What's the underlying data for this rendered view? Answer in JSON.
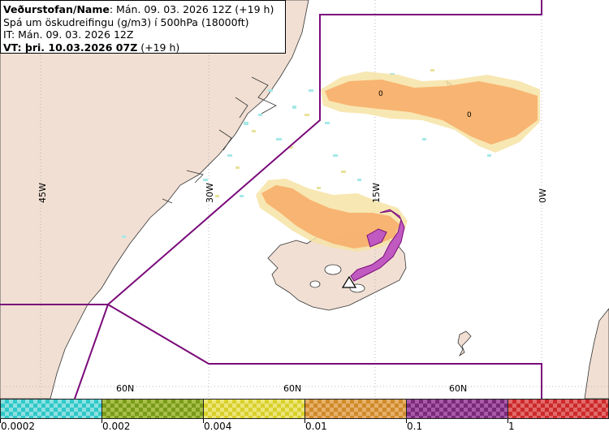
{
  "header": {
    "agency_label": "Veðurstofan/Name",
    "agency_value": ": Mán. 09. 03. 2026 12Z (+19 h)",
    "product": "Spá um öskudreifingu (g/m3) í 500hPa (18000ft)",
    "issue_time": "IT: Mán. 09. 03. 2026 12Z",
    "valid_label": "VT: þri. 10.03.2026 07Z",
    "valid_suffix": " (+19 h)"
  },
  "map": {
    "longitude_labels": [
      "45W",
      "30W",
      "15W",
      "0W"
    ],
    "latitude_labels": [
      "60N",
      "60N",
      "60N"
    ],
    "contour_labels": [
      "0",
      "0"
    ],
    "colors": {
      "land": "#f1dfd3",
      "sea": "#ffffff",
      "boundary": "#7a0a7a",
      "coast": "#333333",
      "graticule": "#a9a9a9"
    },
    "icons": [
      "volcano-icon"
    ]
  },
  "legend": {
    "ticks": [
      "0.0002",
      "0.002",
      "0.004",
      "0.01",
      "0.1",
      "1"
    ],
    "colors": [
      "#2fc8c8",
      "#7a9a1a",
      "#d8d02a",
      "#d08a2a",
      "#7a2a7a",
      "#cc2a2a"
    ]
  }
}
